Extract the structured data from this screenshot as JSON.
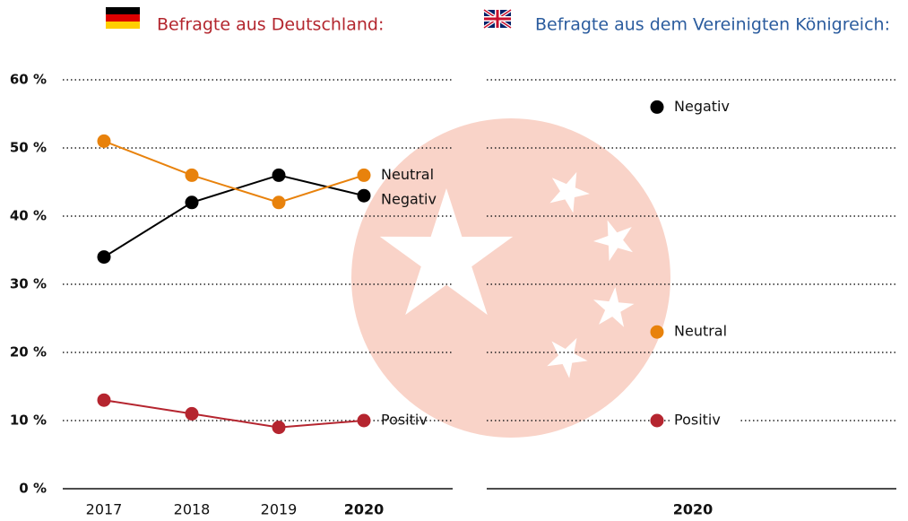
{
  "chart_data": [
    {
      "type": "line",
      "title": "Befragte aus Deutschland:",
      "title_color": "#b3262e",
      "categories": [
        "2017",
        "2018",
        "2019",
        "2020"
      ],
      "series": [
        {
          "name": "Negativ",
          "color": "#000000",
          "values": [
            34,
            42,
            46,
            43
          ]
        },
        {
          "name": "Neutral",
          "color": "#e8820c",
          "values": [
            51,
            46,
            42,
            46
          ]
        },
        {
          "name": "Positiv",
          "color": "#b5252f",
          "values": [
            13,
            11,
            9,
            10
          ]
        }
      ],
      "ylim": [
        0,
        60
      ],
      "yticks": [
        {
          "value": 0,
          "label": "0 %"
        },
        {
          "value": 10,
          "label": "10 %"
        },
        {
          "value": 20,
          "label": "20 %"
        },
        {
          "value": 30,
          "label": "30 %"
        },
        {
          "value": 40,
          "label": "40 %"
        },
        {
          "value": 50,
          "label": "50 %"
        },
        {
          "value": 60,
          "label": "60 %"
        }
      ],
      "grid": true
    },
    {
      "type": "line",
      "title": "Befragte aus dem Vereinigten Königreich:",
      "title_color": "#2b5c9e",
      "categories": [
        "2020"
      ],
      "series": [
        {
          "name": "Negativ",
          "color": "#000000",
          "values": [
            56
          ]
        },
        {
          "name": "Neutral",
          "color": "#e8820c",
          "values": [
            23
          ]
        },
        {
          "name": "Positiv",
          "color": "#b5252f",
          "values": [
            10
          ]
        }
      ],
      "ylim": [
        0,
        60
      ],
      "yticks": [
        0,
        10,
        20,
        30,
        40,
        50,
        60
      ],
      "grid": true
    }
  ]
}
